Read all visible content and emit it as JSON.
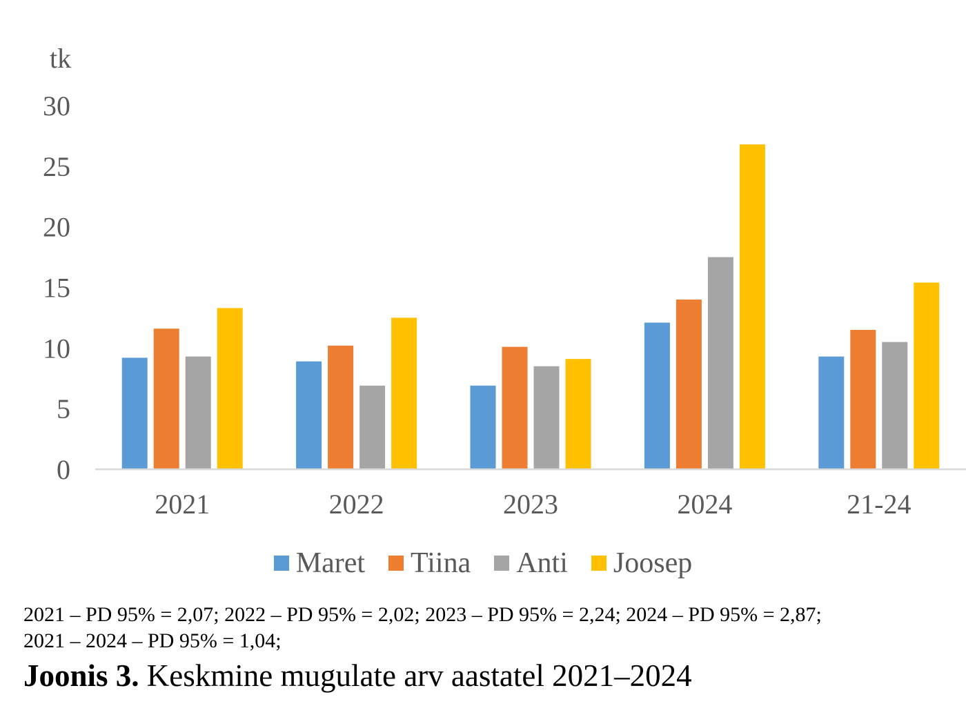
{
  "chart_data": {
    "type": "bar",
    "categories": [
      "2021",
      "2022",
      "2023",
      "2024",
      "21-24"
    ],
    "series": [
      {
        "name": "Maret",
        "color": "#5B9BD5",
        "values": [
          9.2,
          8.9,
          6.9,
          12.1,
          9.3
        ]
      },
      {
        "name": "Tiina",
        "color": "#ED7D31",
        "values": [
          11.6,
          10.2,
          10.1,
          14.0,
          11.5
        ]
      },
      {
        "name": "Anti",
        "color": "#A5A5A5",
        "values": [
          9.3,
          6.9,
          8.5,
          17.5,
          10.5
        ]
      },
      {
        "name": "Joosep",
        "color": "#FFC000",
        "values": [
          13.3,
          12.5,
          9.1,
          26.8,
          15.4
        ]
      }
    ],
    "ylabel": "tk",
    "ylim": [
      0,
      30
    ],
    "yticks": [
      "0",
      "5",
      "10",
      "15",
      "20",
      "25",
      "30"
    ],
    "grid": false,
    "legend_position": "bottom"
  },
  "notes": {
    "line1": "2021 – PD 95% = 2,07; 2022 – PD 95% = 2,02; 2023 – PD 95% = 2,24; 2024 – PD 95% = 2,87;",
    "line2": "2021 – 2024 – PD 95% = 1,04;"
  },
  "caption": {
    "label": "Joonis 3.",
    "text": " Keskmine mugulate arv aastatel 2021–2024"
  }
}
